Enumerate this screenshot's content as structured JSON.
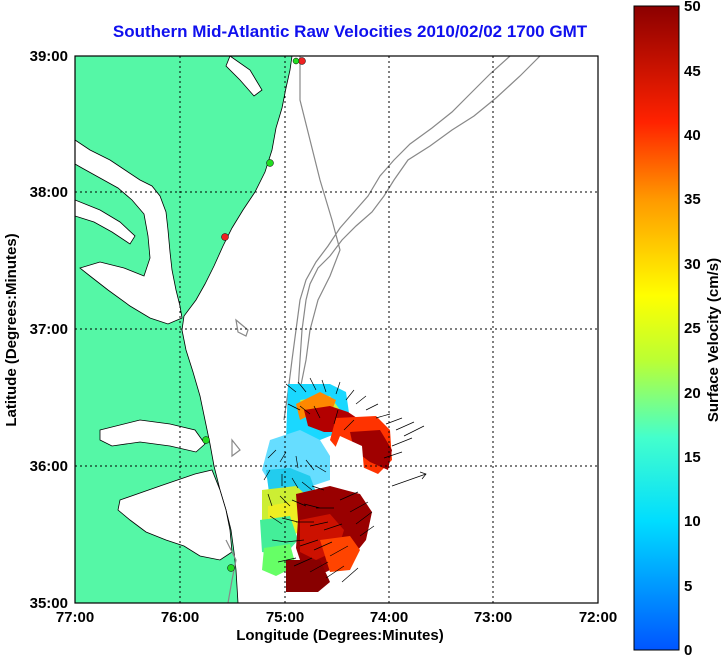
{
  "title": "Southern Mid-Atlantic Raw Velocities 2010/02/02 1700 GMT",
  "x_axis": {
    "label": "Longitude (Degrees:Minutes)",
    "ticks": [
      "77:00",
      "76:00",
      "75:00",
      "74:00",
      "73:00",
      "72:00"
    ]
  },
  "y_axis": {
    "label": "Latitude (Degrees:Minutes)",
    "ticks": [
      "39:00",
      "38:00",
      "37:00",
      "36:00",
      "35:00"
    ]
  },
  "colorbar": {
    "label": "Surface Velocity (cm/s)",
    "min": 0,
    "max": 50,
    "ticks": [
      "50",
      "45",
      "40",
      "35",
      "30",
      "25",
      "20",
      "15",
      "10",
      "5",
      "0"
    ]
  },
  "colors": {
    "land": "#55f7a6",
    "water": "#ffffff",
    "title": "#1010ee",
    "bathymetry": "#888888",
    "station_green": "#22dd22",
    "station_red": "#ee2222"
  },
  "grid": true
}
